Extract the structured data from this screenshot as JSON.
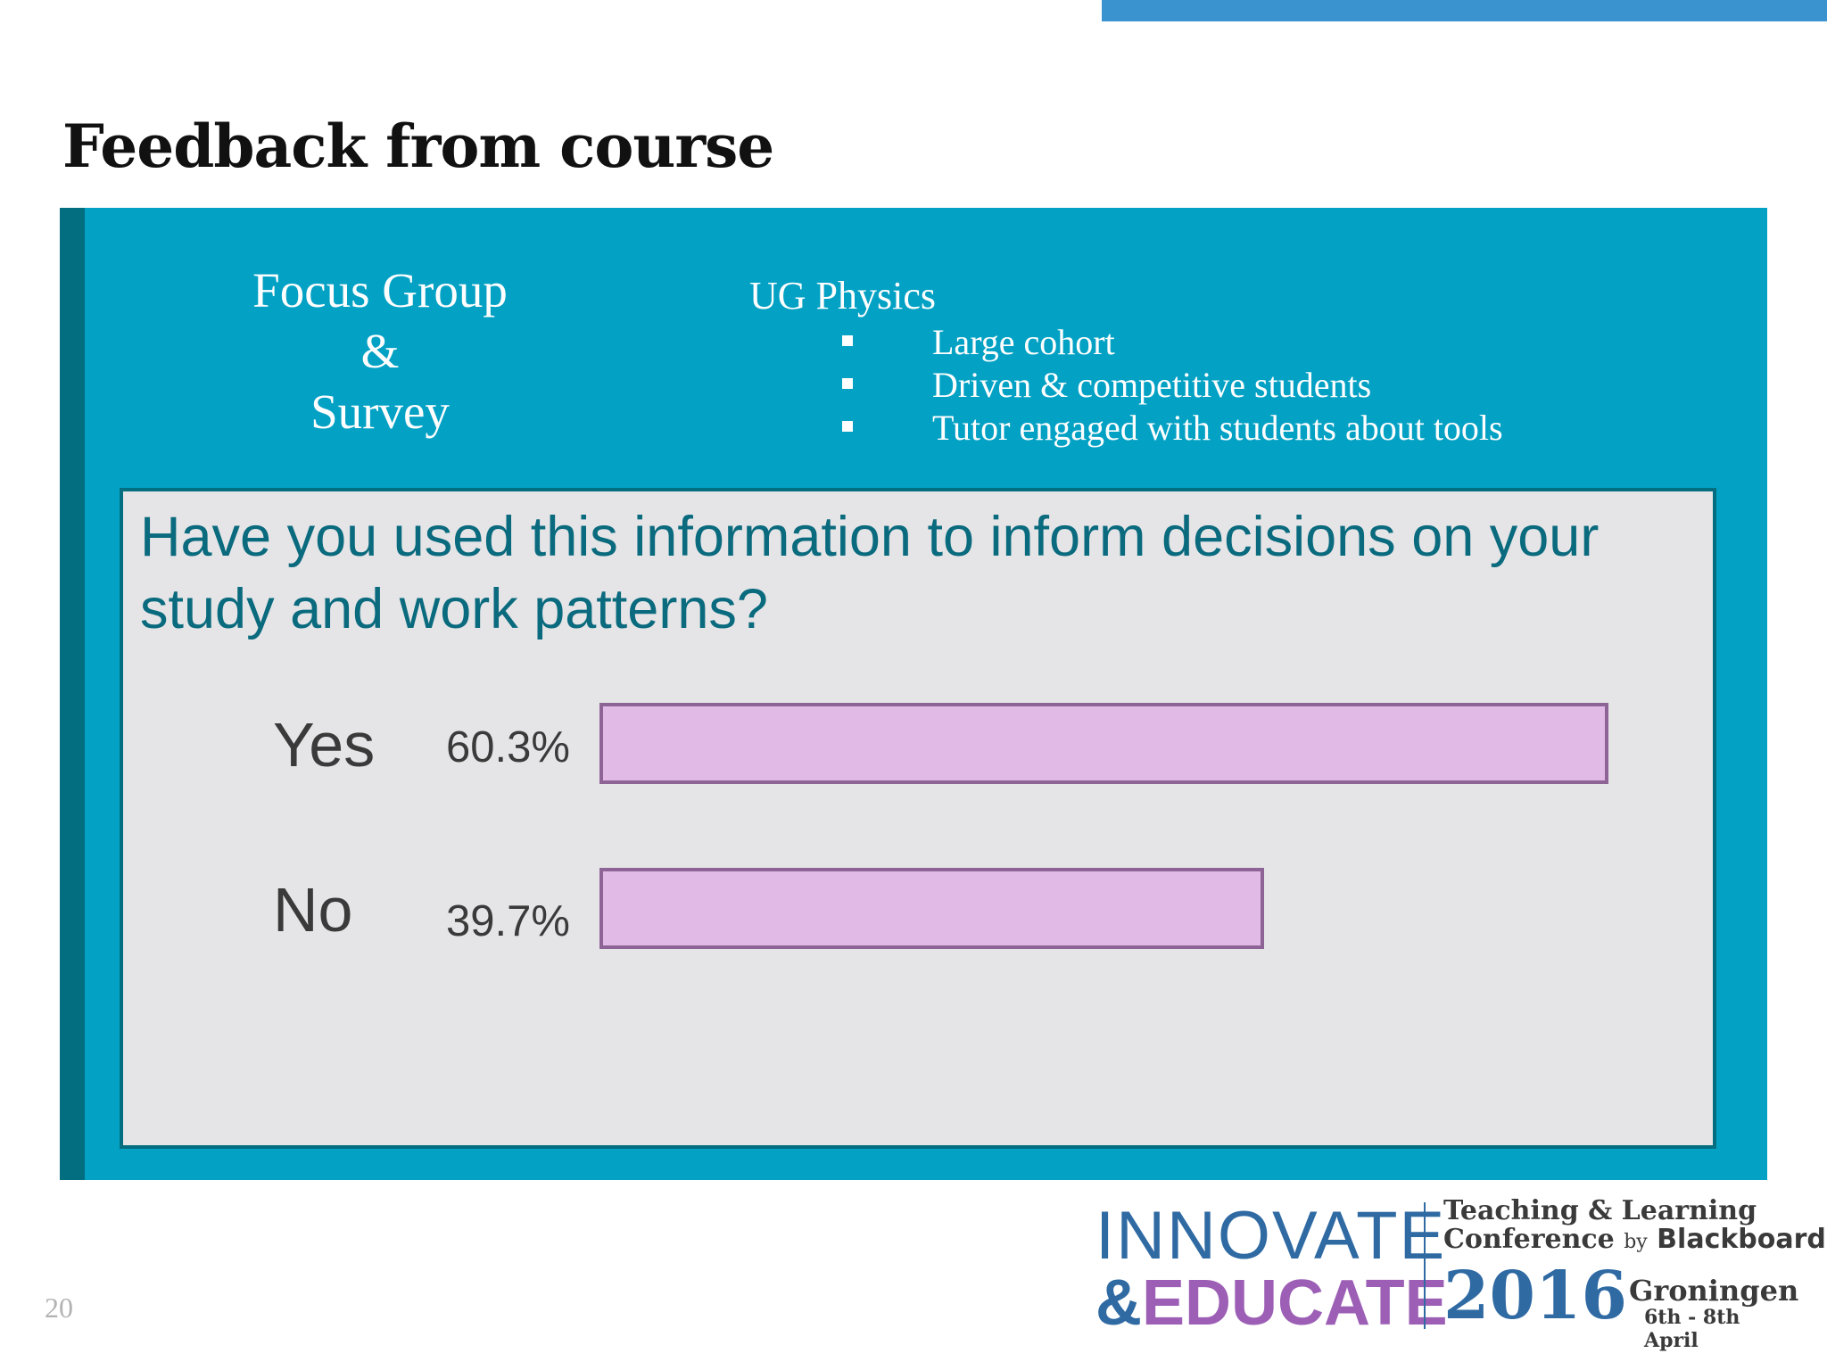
{
  "slide": {
    "title": "Feedback from course",
    "page_number": "20"
  },
  "panel": {
    "focus_line1": "Focus Group",
    "focus_line2": "&",
    "focus_line3": "Survey",
    "course": "UG Physics",
    "bullets": [
      "Large cohort",
      "Driven & competitive students",
      "Tutor engaged with students about tools"
    ]
  },
  "question": "Have you used this information to inform decisions on your study and work patterns?",
  "chart_data": {
    "type": "bar",
    "orientation": "horizontal",
    "categories": [
      "Yes",
      "No"
    ],
    "values": [
      60.3,
      39.7
    ],
    "value_labels": [
      "60.3%",
      "39.7%"
    ],
    "title": "Have you used this information to inform decisions on your study and work patterns?",
    "xlabel": "",
    "ylabel": "",
    "grid": false,
    "colors": {
      "bar_fill": "#e1bbe6",
      "bar_border": "#8e6497"
    }
  },
  "logo": {
    "innovate": "INNOVATE",
    "educate_amp": "&",
    "educate": "EDUCATE",
    "teaching_learning": "Teaching & Learning",
    "conference": "Conference",
    "by": "by",
    "blackboard": "Blackboard",
    "year": "2016",
    "city": "Groningen",
    "dates": "6th - 8th April"
  },
  "colors": {
    "panel": "#03a1c4",
    "panel_edge": "#026e7f",
    "inner": "#e5e5e7",
    "question_text": "#0a6a7e",
    "top_bar": "#3a93cf"
  }
}
